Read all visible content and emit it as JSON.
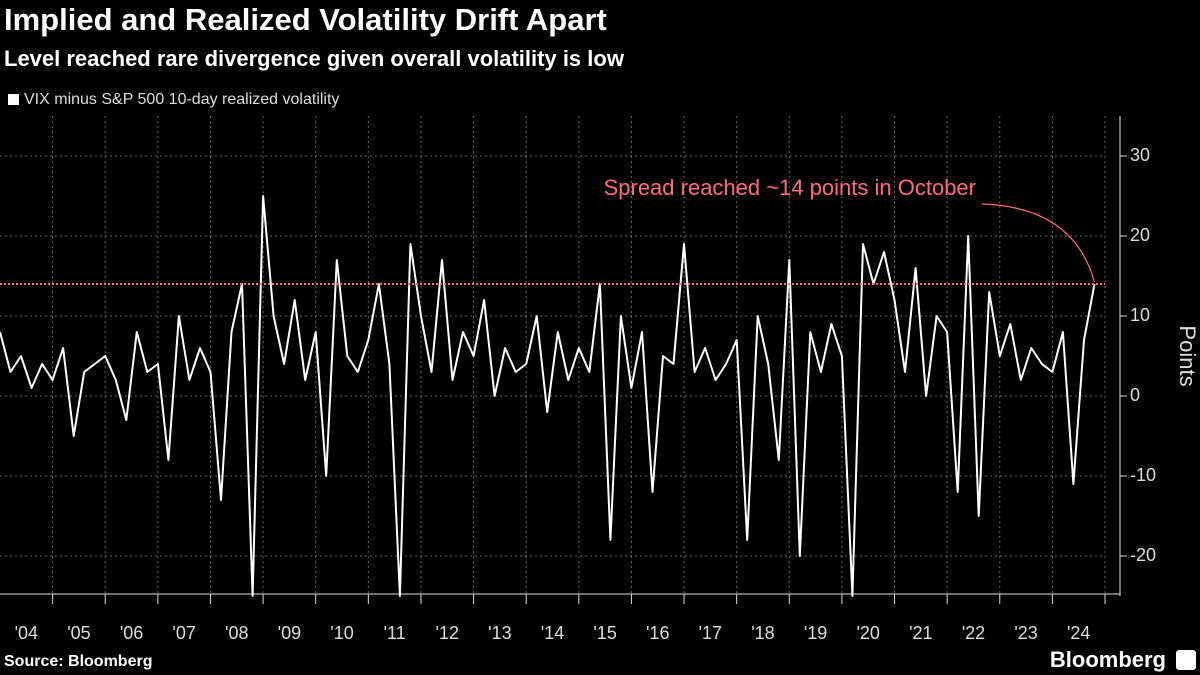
{
  "chart_data": {
    "type": "line",
    "title": "Implied and Realized Volatility Drift Apart",
    "subtitle": "Level reached rare divergence given overall volatility is low",
    "y_label": "Points",
    "source": "Source: Bloomberg",
    "brand": "Bloomberg",
    "annotation": "Spread reached ~14 points in October",
    "reference_line": {
      "value": 14,
      "color": "#ff6b7d"
    },
    "grid": true,
    "xlim": [
      2004,
      2025
    ],
    "xticks": [
      {
        "value": 2004.5,
        "label": "'04"
      },
      {
        "value": 2005.5,
        "label": "'05"
      },
      {
        "value": 2006.5,
        "label": "'06"
      },
      {
        "value": 2007.5,
        "label": "'07"
      },
      {
        "value": 2008.5,
        "label": "'08"
      },
      {
        "value": 2009.5,
        "label": "'09"
      },
      {
        "value": 2010.5,
        "label": "'10"
      },
      {
        "value": 2011.5,
        "label": "'11"
      },
      {
        "value": 2012.5,
        "label": "'12"
      },
      {
        "value": 2013.5,
        "label": "'13"
      },
      {
        "value": 2014.5,
        "label": "'14"
      },
      {
        "value": 2015.5,
        "label": "'15"
      },
      {
        "value": 2016.5,
        "label": "'16"
      },
      {
        "value": 2017.5,
        "label": "'17"
      },
      {
        "value": 2018.5,
        "label": "'18"
      },
      {
        "value": 2019.5,
        "label": "'19"
      },
      {
        "value": 2020.5,
        "label": "'20"
      },
      {
        "value": 2021.5,
        "label": "'21"
      },
      {
        "value": 2022.5,
        "label": "'22"
      },
      {
        "value": 2023.5,
        "label": "'23"
      },
      {
        "value": 2024.5,
        "label": "'24"
      }
    ],
    "ylim": [
      -25,
      35
    ],
    "yticks": [
      -20,
      -10,
      0,
      10,
      20,
      30
    ],
    "x": [
      2004.0,
      2004.2,
      2004.4,
      2004.6,
      2004.8,
      2005.0,
      2005.2,
      2005.4,
      2005.6,
      2005.8,
      2006.0,
      2006.2,
      2006.4,
      2006.6,
      2006.8,
      2007.0,
      2007.2,
      2007.4,
      2007.6,
      2007.8,
      2008.0,
      2008.2,
      2008.4,
      2008.6,
      2008.8,
      2009.0,
      2009.2,
      2009.4,
      2009.6,
      2009.8,
      2010.0,
      2010.2,
      2010.4,
      2010.6,
      2010.8,
      2011.0,
      2011.2,
      2011.4,
      2011.6,
      2011.8,
      2012.0,
      2012.2,
      2012.4,
      2012.6,
      2012.8,
      2013.0,
      2013.2,
      2013.4,
      2013.6,
      2013.8,
      2014.0,
      2014.2,
      2014.4,
      2014.6,
      2014.8,
      2015.0,
      2015.2,
      2015.4,
      2015.6,
      2015.8,
      2016.0,
      2016.2,
      2016.4,
      2016.6,
      2016.8,
      2017.0,
      2017.2,
      2017.4,
      2017.6,
      2017.8,
      2018.0,
      2018.2,
      2018.4,
      2018.6,
      2018.8,
      2019.0,
      2019.2,
      2019.4,
      2019.6,
      2019.8,
      2020.0,
      2020.2,
      2020.4,
      2020.6,
      2020.8,
      2021.0,
      2021.2,
      2021.4,
      2021.6,
      2021.8,
      2022.0,
      2022.2,
      2022.4,
      2022.6,
      2022.8,
      2023.0,
      2023.2,
      2023.4,
      2023.6,
      2023.8,
      2024.0,
      2024.2,
      2024.4,
      2024.6,
      2024.8
    ],
    "series": [
      {
        "name": "VIX minus S&P 500 10-day realized volatility",
        "color": "#ffffff",
        "values": [
          8,
          3,
          5,
          1,
          4,
          2,
          6,
          -5,
          3,
          4,
          5,
          2,
          -3,
          8,
          3,
          4,
          -8,
          10,
          2,
          6,
          3,
          -13,
          8,
          14,
          -25,
          25,
          10,
          4,
          12,
          2,
          8,
          -10,
          17,
          5,
          3,
          7,
          14,
          4,
          -25,
          19,
          10,
          3,
          17,
          2,
          8,
          5,
          12,
          0,
          6,
          3,
          4,
          10,
          -2,
          8,
          2,
          6,
          3,
          14,
          -18,
          10,
          1,
          8,
          -12,
          5,
          4,
          19,
          3,
          6,
          2,
          4,
          7,
          -18,
          10,
          4,
          -8,
          17,
          -20,
          8,
          3,
          9,
          5,
          -25,
          19,
          14,
          18,
          12,
          3,
          16,
          0,
          10,
          8,
          -12,
          20,
          -15,
          13,
          5,
          9,
          2,
          6,
          4,
          3,
          8,
          -11,
          7,
          14
        ]
      }
    ]
  }
}
